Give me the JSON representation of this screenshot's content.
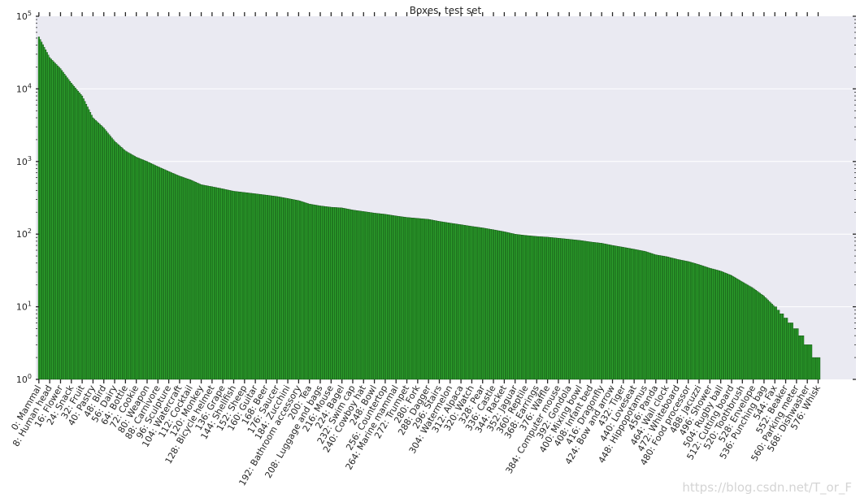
{
  "chart_data": {
    "type": "bar",
    "title": "Boxes, test set",
    "xlabel": "",
    "ylabel": "",
    "yscale": "log",
    "ylim": [
      1,
      100000
    ],
    "y_tick_labels": [
      "10^0",
      "10^1",
      "10^2",
      "10^3",
      "10^4",
      "10^5"
    ],
    "x_tick_labels": [
      "0: Mammal",
      "8: Human head",
      "16: Flower",
      "24: Snack",
      "32: Fruit",
      "40: Pastry",
      "48: Bird",
      "56: Dairy",
      "64: Bottle",
      "72: Cookie",
      "80: Weapon",
      "88: Carnivore",
      "96: Sculpture",
      "104: Watercraft",
      "112: Cocktail",
      "120: Monkey",
      "128: Bicycle helmet",
      "136: Grape",
      "144: Shellfish",
      "152: Sheep",
      "160: Guitar",
      "168: Beer",
      "176: Saucer",
      "184: Zucchini",
      "192: Bathroom accessory",
      "200: Tea",
      "208: Luggage and bags",
      "216: Mouse",
      "224: Bagel",
      "232: Swim cap",
      "240: Cowboy hat",
      "248: Bowl",
      "256: Countertop",
      "264: Marine mammal",
      "272: Trumpet",
      "280: Fork",
      "288: Dagger",
      "296: Stairs",
      "304: Watermelon",
      "312: Alpaca",
      "320: Watch",
      "328: Pear",
      "336: Castle",
      "344: Racket",
      "352: Jaguar",
      "360: Reptile",
      "368: Earrings",
      "376: Waffle",
      "384: Computer mouse",
      "392: Gondola",
      "400: Mixing bowl",
      "408: Infant bed",
      "416: Dragonfly",
      "424: Bow and arrow",
      "432: Tiger",
      "440: Loveseat",
      "448: Hippopotamus",
      "456: Panda",
      "464: Wall clock",
      "472: Whiteboard",
      "480: Food processor",
      "488: Jacuzzi",
      "496: Shower",
      "504: Rugby ball",
      "512: Cutting board",
      "520: Toothbrush",
      "528: Envelope",
      "536: Punching bag",
      "544: Fax",
      "552: Beaker",
      "560: Parking meter",
      "568: Dishwasher",
      "576: Whisk"
    ],
    "n_bars": 578,
    "tick_step": 8,
    "values_at_ticks": [
      52000,
      27000,
      19000,
      12000,
      8000,
      4000,
      2900,
      1900,
      1400,
      1150,
      1000,
      850,
      730,
      630,
      560,
      480,
      450,
      420,
      390,
      375,
      360,
      345,
      330,
      310,
      290,
      260,
      245,
      235,
      230,
      215,
      205,
      195,
      188,
      178,
      170,
      165,
      160,
      150,
      142,
      135,
      128,
      122,
      115,
      108,
      100,
      96,
      93,
      91,
      88,
      85,
      82,
      78,
      75,
      70,
      66,
      62,
      58,
      52,
      49,
      45,
      42,
      38,
      34,
      31,
      27,
      22,
      18,
      14,
      10,
      7,
      5,
      3,
      2
    ],
    "last_value": 2,
    "bar_color": "#2ca02c",
    "bar_edge": "#0a3a0a",
    "plot_background": "#eaeaf2",
    "grid": true,
    "grid_color": "#ffffff"
  },
  "watermark": "https://blog.csdn.net/T_or_F"
}
